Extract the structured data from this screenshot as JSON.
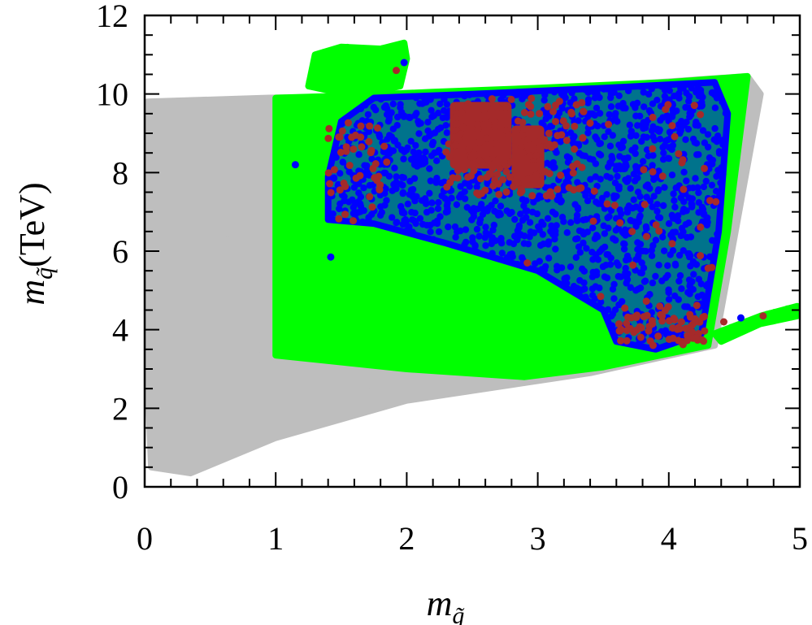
{
  "chart_data": {
    "type": "scatter",
    "title": "",
    "xlabel": {
      "main": "m",
      "sub": "g̃"
    },
    "ylabel": {
      "main": "m",
      "sub": "q̃",
      "unit": "(TeV)"
    },
    "xlim": [
      0,
      5
    ],
    "ylim": [
      0,
      12
    ],
    "x_ticks": [
      "0",
      "1",
      "2",
      "3",
      "4",
      "5"
    ],
    "y_ticks": [
      "0",
      "2",
      "4",
      "6",
      "8",
      "10",
      "12"
    ],
    "x_tick_values": [
      0,
      1,
      2,
      3,
      4,
      5
    ],
    "y_tick_values": [
      0,
      2,
      4,
      6,
      8,
      10,
      12
    ],
    "grid": false,
    "legend": "none",
    "colors": {
      "gray": "#bebebe",
      "green": "#00ff00",
      "blue": "#0000ff",
      "brown": "#a52a2a"
    },
    "series": [
      {
        "color": "gray",
        "regions": [
          {
            "shape": "polygon",
            "points": [
              [
                0.02,
                9.8
              ],
              [
                0.95,
                9.9
              ],
              [
                2.0,
                9.95
              ],
              [
                3.5,
                10.2
              ],
              [
                4.6,
                10.45
              ],
              [
                4.7,
                10.0
              ],
              [
                4.35,
                3.6
              ],
              [
                3.4,
                2.9
              ],
              [
                2.0,
                2.2
              ],
              [
                1.0,
                1.25
              ],
              [
                0.35,
                0.35
              ],
              [
                0.05,
                0.5
              ],
              [
                0.02,
                3.0
              ]
            ]
          }
        ]
      },
      {
        "color": "green",
        "regions": [
          {
            "shape": "polygon",
            "points": [
              [
                1.0,
                9.9
              ],
              [
                1.5,
                9.95
              ],
              [
                2.2,
                10.05
              ],
              [
                3.0,
                10.15
              ],
              [
                4.0,
                10.3
              ],
              [
                4.6,
                10.45
              ],
              [
                4.45,
                6.5
              ],
              [
                4.3,
                3.6
              ],
              [
                3.5,
                3.05
              ],
              [
                2.9,
                2.8
              ],
              [
                2.0,
                3.0
              ],
              [
                1.0,
                3.35
              ]
            ]
          },
          {
            "shape": "polygon",
            "points": [
              [
                1.25,
                10.2
              ],
              [
                1.3,
                11.0
              ],
              [
                1.5,
                11.2
              ],
              [
                1.8,
                11.15
              ],
              [
                1.98,
                11.3
              ],
              [
                2.0,
                10.9
              ],
              [
                1.95,
                10.2
              ],
              [
                1.6,
                9.95
              ]
            ]
          },
          {
            "shape": "polygon",
            "points": [
              [
                4.35,
                3.9
              ],
              [
                4.7,
                4.35
              ],
              [
                4.98,
                4.6
              ],
              [
                4.98,
                4.35
              ],
              [
                4.7,
                4.15
              ],
              [
                4.4,
                3.7
              ]
            ]
          }
        ]
      },
      {
        "color": "blue",
        "regions": [
          {
            "shape": "polygon",
            "points": [
              [
                1.4,
                7.9
              ],
              [
                1.5,
                9.3
              ],
              [
                1.75,
                9.9
              ],
              [
                2.5,
                10.0
              ],
              [
                3.5,
                10.15
              ],
              [
                4.35,
                10.3
              ],
              [
                4.45,
                9.5
              ],
              [
                4.38,
                6.5
              ],
              [
                4.25,
                3.9
              ],
              [
                3.9,
                3.5
              ],
              [
                3.6,
                3.7
              ],
              [
                3.5,
                4.5
              ],
              [
                3.0,
                5.5
              ],
              [
                2.3,
                6.2
              ],
              [
                1.75,
                6.7
              ],
              [
                1.4,
                6.8
              ]
            ]
          }
        ]
      },
      {
        "color": "brown",
        "regions": [
          {
            "shape": "rect",
            "x": [
              2.33,
              2.8
            ],
            "y": [
              8.1,
              9.8
            ]
          },
          {
            "shape": "rect",
            "x": [
              2.8,
              3.05
            ],
            "y": [
              7.6,
              9.2
            ]
          }
        ]
      }
    ],
    "sparse_points": [
      {
        "color": "brown",
        "x": 1.92,
        "y": 10.6
      },
      {
        "color": "blue",
        "x": 1.98,
        "y": 10.8
      },
      {
        "color": "blue",
        "x": 1.15,
        "y": 8.2
      },
      {
        "color": "blue",
        "x": 1.42,
        "y": 5.85
      },
      {
        "color": "blue",
        "x": 4.55,
        "y": 4.3
      },
      {
        "color": "brown",
        "x": 4.72,
        "y": 4.35
      },
      {
        "color": "brown",
        "x": 4.42,
        "y": 4.2
      },
      {
        "color": "brown",
        "x": 2.92,
        "y": 5.7
      },
      {
        "color": "brown",
        "x": 3.35,
        "y": 9.55
      },
      {
        "color": "brown",
        "x": 4.1,
        "y": 8.25
      },
      {
        "color": "brown",
        "x": 3.72,
        "y": 6.5
      }
    ]
  }
}
